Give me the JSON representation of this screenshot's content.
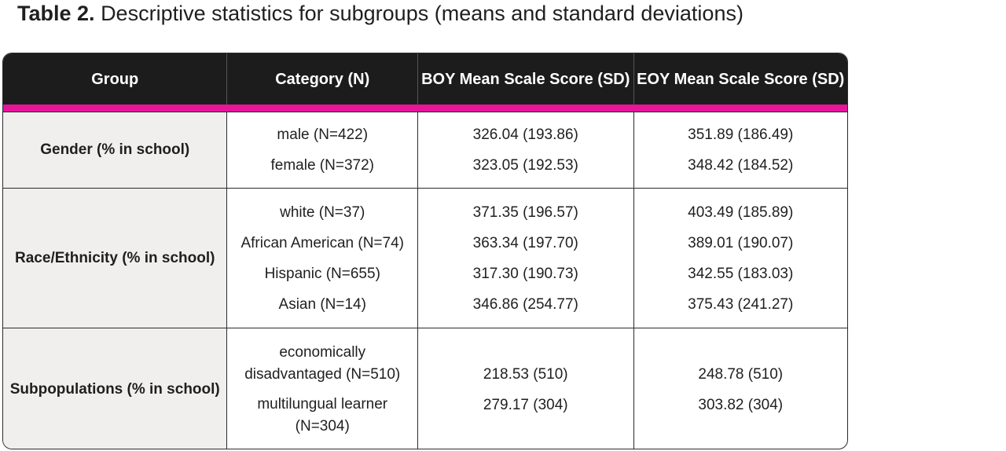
{
  "title": {
    "label": "Table 2.",
    "text": "Descriptive statistics for subgroups (means and standard deviations)"
  },
  "colors": {
    "header_bg": "#1c1c1c",
    "accent": "#e6159a",
    "group_bg": "#f1efee"
  },
  "table": {
    "headers": [
      "Group",
      "Category (N)",
      "BOY Mean Scale Score (SD)",
      "EOY Mean Scale Score (SD)"
    ],
    "groups": [
      {
        "name": "Gender (% in school)",
        "categories": [
          "male (N=422)",
          "female (N=372)"
        ],
        "boy": [
          "326.04 (193.86)",
          "323.05 (192.53)"
        ],
        "eoy": [
          "351.89 (186.49)",
          "348.42 (184.52)"
        ]
      },
      {
        "name": "Race/Ethnicity (% in school)",
        "categories": [
          "white (N=37)",
          "African American (N=74)",
          "Hispanic (N=655)",
          "Asian (N=14)"
        ],
        "boy": [
          "371.35 (196.57)",
          "363.34 (197.70)",
          "317.30 (190.73)",
          "346.86 (254.77)"
        ],
        "eoy": [
          "403.49 (185.89)",
          "389.01 (190.07)",
          "342.55 (183.03)",
          "375.43 (241.27)"
        ]
      },
      {
        "name": "Subpopulations (% in school)",
        "categories": [
          "economically disadvantaged (N=510)",
          "multilungual learner (N=304)"
        ],
        "boy": [
          "218.53 (510)",
          "279.17 (304)"
        ],
        "eoy": [
          "248.78 (510)",
          "303.82 (304)"
        ]
      }
    ]
  }
}
